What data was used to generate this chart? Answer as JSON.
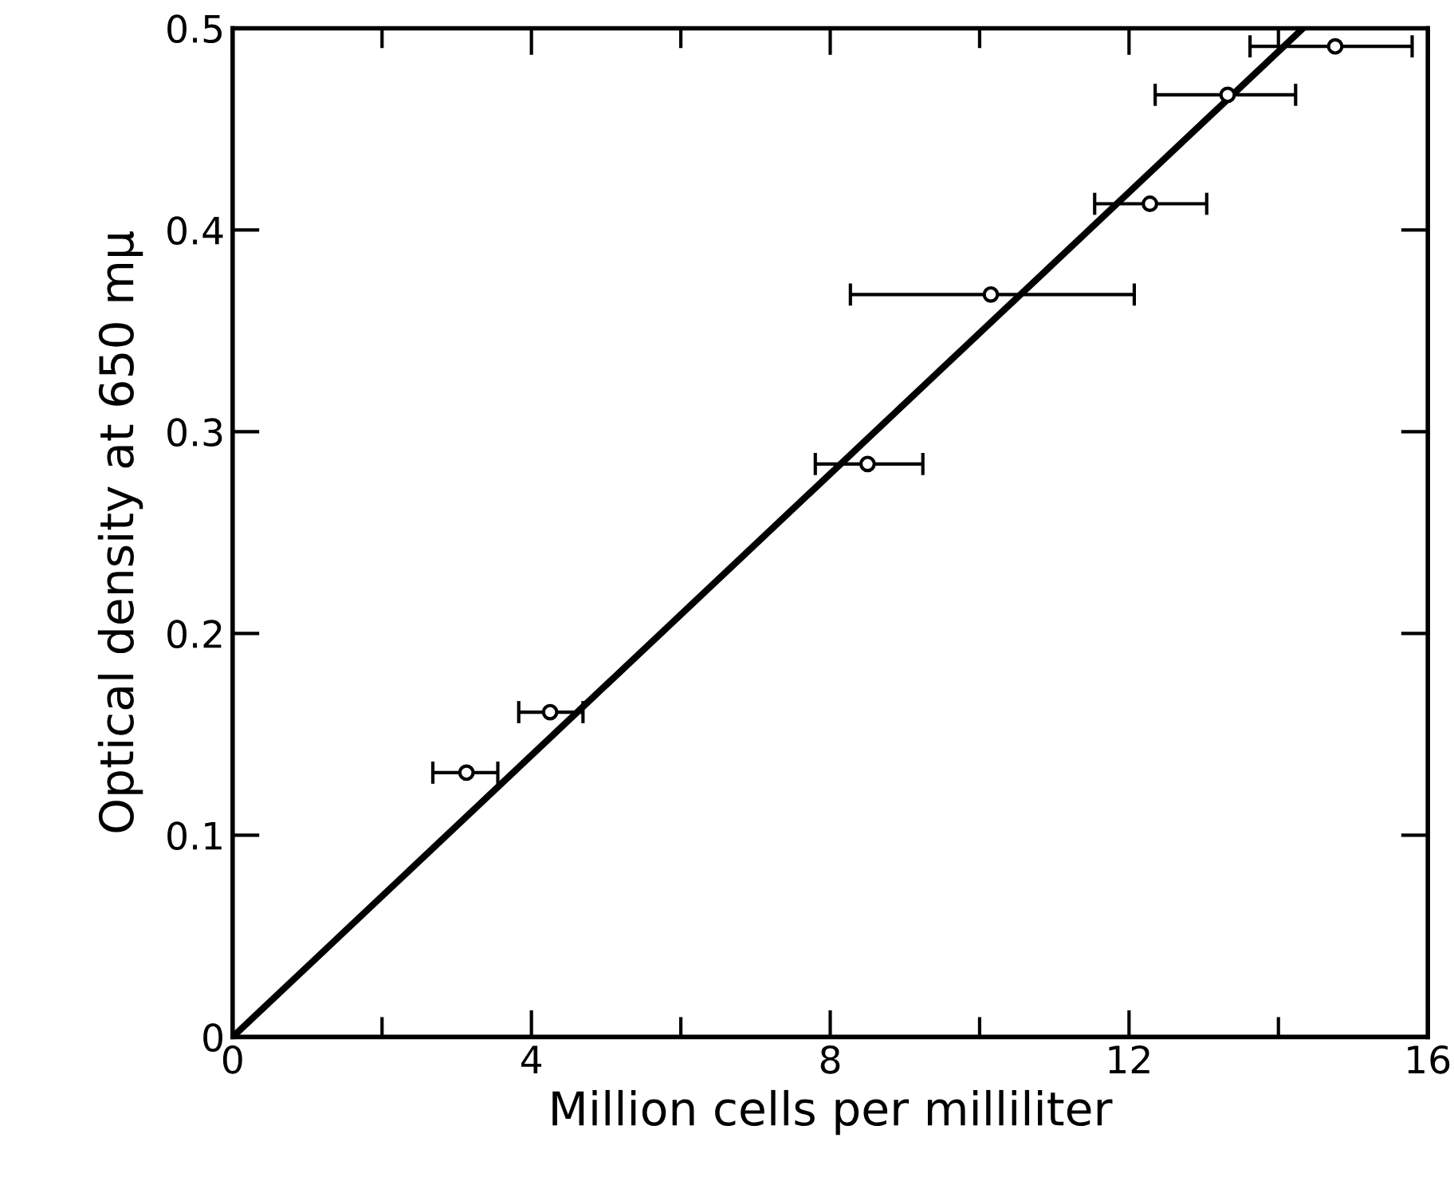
{
  "chart_data": {
    "type": "scatter",
    "xlabel": "Million cells per milliliter",
    "ylabel": "Optical density at 650 mμ",
    "xlim": [
      0,
      16
    ],
    "ylim": [
      0,
      0.5
    ],
    "xticks": [
      0,
      {
        "value": 2,
        "label": null
      },
      4,
      {
        "value": 6,
        "label": null
      },
      8,
      {
        "value": 10,
        "label": null
      },
      12,
      {
        "value": 14,
        "label": null
      },
      16
    ],
    "yticks": [
      0,
      0.1,
      0.2,
      0.3,
      0.4,
      0.5
    ],
    "grid": false,
    "marker": "circle",
    "series": [
      {
        "color": "#000000",
        "x": [
          3.13,
          4.25,
          8.5,
          10.15,
          12.28,
          13.32,
          14.76
        ],
        "values": [
          0.131,
          0.161,
          0.284,
          0.368,
          0.413,
          0.467,
          0.491
        ],
        "xerrors": [
          [
            2.68,
            3.55
          ],
          [
            3.83,
            4.69
          ],
          [
            7.8,
            9.24
          ],
          [
            8.27,
            12.07
          ],
          [
            11.54,
            13.04
          ],
          [
            12.35,
            14.23
          ],
          [
            13.62,
            15.79
          ]
        ]
      },
      {
        "type": "line",
        "color": "#000000",
        "x": [
          0,
          14.33
        ],
        "values": [
          0,
          0.5
        ],
        "marker": "none",
        "line_style": "solid"
      }
    ]
  }
}
